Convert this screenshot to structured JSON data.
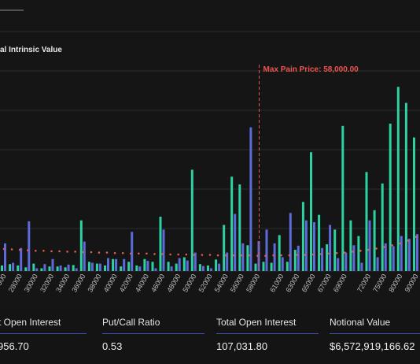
{
  "chart_data": {
    "type": "bar",
    "title": "",
    "legend_entry": "al Intrinsic Value",
    "max_pain_label": "Max Pain Price: 58,000.00",
    "max_pain_strike": "58000",
    "categories": [
      "26000",
      "27000",
      "28000",
      "29000",
      "30000",
      "31000",
      "32000",
      "33000",
      "34000",
      "35000",
      "36000",
      "37000",
      "38000",
      "39000",
      "40000",
      "41000",
      "42000",
      "43000",
      "44000",
      "45000",
      "46000",
      "47000",
      "48000",
      "49000",
      "50000",
      "51000",
      "52000",
      "53000",
      "54000",
      "55000",
      "56000",
      "57000",
      "58000",
      "59000",
      "60000",
      "61000",
      "62000",
      "63000",
      "64000",
      "65000",
      "66000",
      "67000",
      "68000",
      "69000",
      "70000",
      "71000",
      "72000",
      "73000",
      "75000",
      "76000",
      "80000",
      "85000",
      "90000"
    ],
    "tick_labels": [
      "26000",
      "28000",
      "30000",
      "32000",
      "34000",
      "36000",
      "38000",
      "40000",
      "42000",
      "44000",
      "46000",
      "48000",
      "50000",
      "52000",
      "54000",
      "56000",
      "58000",
      "61000",
      "63000",
      "65000",
      "67000",
      "69000",
      "72000",
      "75000",
      "80000",
      "90000"
    ],
    "series": [
      {
        "color": "#2ed1a2",
        "values": [
          120,
          150,
          120,
          80,
          160,
          60,
          100,
          100,
          80,
          130,
          1100,
          200,
          160,
          120,
          260,
          100,
          200,
          120,
          260,
          200,
          1180,
          200,
          160,
          300,
          2200,
          150,
          120,
          250,
          1000,
          2050,
          1880,
          560,
          160,
          200,
          180,
          780,
          200,
          460,
          1500,
          2580,
          1220,
          580,
          900,
          3150,
          1100,
          760,
          2150,
          1320,
          1900,
          3200,
          4000,
          3650,
          2900
        ]
      },
      {
        "color": "#5c6bd9",
        "values": [
          600,
          180,
          500,
          1080,
          60,
          150,
          260,
          120,
          140,
          60,
          640,
          180,
          160,
          280,
          260,
          260,
          850,
          100,
          220,
          60,
          900,
          100,
          280,
          230,
          400,
          110,
          60,
          160,
          400,
          1240,
          600,
          3120,
          650,
          900,
          600,
          300,
          1260,
          550,
          1100,
          1060,
          500,
          1000,
          280,
          400,
          560,
          180,
          1100,
          300,
          600,
          540,
          760,
          700,
          800
        ]
      }
    ],
    "ylim": [
      0,
      5200
    ],
    "pain_curve": [
      0.48,
      0.47,
      0.46,
      0.45,
      0.44,
      0.44,
      0.43,
      0.43,
      0.42,
      0.42,
      0.41,
      0.41,
      0.4,
      0.4,
      0.39,
      0.39,
      0.38,
      0.38,
      0.38,
      0.37,
      0.37,
      0.36,
      0.36,
      0.36,
      0.35,
      0.35,
      0.35,
      0.34,
      0.34,
      0.34,
      0.34,
      0.34,
      0.33,
      0.33,
      0.34,
      0.34,
      0.34,
      0.35,
      0.35,
      0.36,
      0.37,
      0.38,
      0.39,
      0.4,
      0.42,
      0.44,
      0.46,
      0.49,
      0.52,
      0.56,
      0.6,
      0.66,
      0.74
    ],
    "pain_curve_color": "#e05a4e",
    "grid": true
  },
  "stats": [
    {
      "label": "t Open Interest",
      "value": "956.70"
    },
    {
      "label": "Put/Call Ratio",
      "value": "0.53"
    },
    {
      "label": "Total Open Interest",
      "value": "107,031.80"
    },
    {
      "label": "Notional Value",
      "value": "$6,572,919,166.62"
    }
  ]
}
